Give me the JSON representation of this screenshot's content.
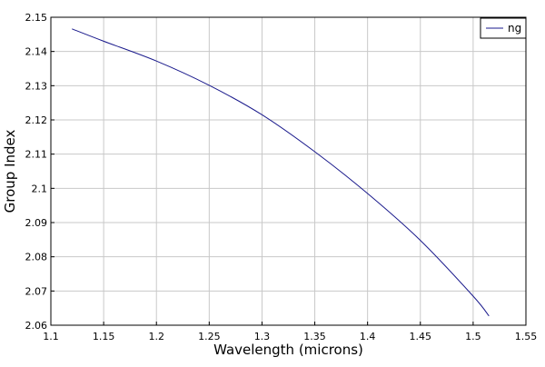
{
  "chart_data": {
    "type": "line",
    "title": "",
    "xlabel": "Wavelength (microns)",
    "ylabel": "Group Index",
    "xlim": [
      1.1,
      1.55
    ],
    "ylim": [
      2.06,
      2.15
    ],
    "x_ticks": [
      "1.1",
      "1.15",
      "1.2",
      "1.25",
      "1.3",
      "1.35",
      "1.4",
      "1.45",
      "1.5",
      "1.55"
    ],
    "y_ticks": [
      "2.06",
      "2.07",
      "2.08",
      "2.09",
      "2.1",
      "2.11",
      "2.12",
      "2.13",
      "2.14",
      "2.15"
    ],
    "grid": true,
    "legend_position": "top-right",
    "series": [
      {
        "name": "ng",
        "color": "#1a1a8c",
        "x": [
          1.12,
          1.15,
          1.2,
          1.25,
          1.3,
          1.35,
          1.4,
          1.45,
          1.5,
          1.515
        ],
        "y": [
          2.1466,
          2.143,
          2.1372,
          2.1301,
          2.1215,
          2.1107,
          2.0985,
          2.0848,
          2.0685,
          2.0627
        ]
      }
    ]
  }
}
